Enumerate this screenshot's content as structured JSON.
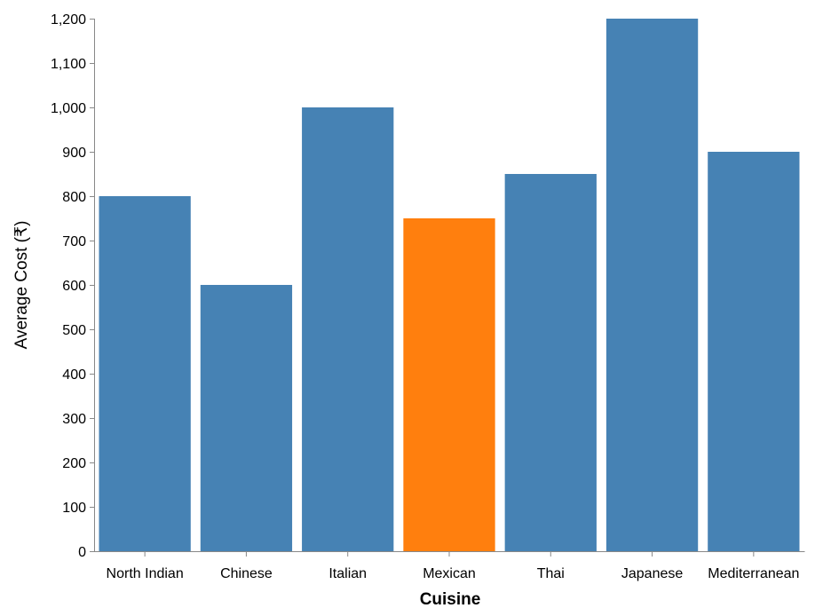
{
  "chart_data": {
    "type": "bar",
    "categories": [
      "North Indian",
      "Chinese",
      "Italian",
      "Mexican",
      "Thai",
      "Japanese",
      "Mediterranean"
    ],
    "values": [
      800,
      600,
      1000,
      750,
      850,
      1200,
      900
    ],
    "highlight_index": 3,
    "xlabel": "Cuisine",
    "ylabel": "Average Cost (₹)",
    "ylim": [
      0,
      1200
    ],
    "yticks": [
      0,
      100,
      200,
      300,
      400,
      500,
      600,
      700,
      800,
      900,
      1000,
      1100,
      1200
    ],
    "ytick_labels": [
      "0",
      "100",
      "200",
      "300",
      "400",
      "500",
      "600",
      "700",
      "800",
      "900",
      "1,000",
      "1,100",
      "1,200"
    ],
    "grid": false,
    "legend": "none",
    "colors": {
      "bar": "#4682b4",
      "highlight": "#ff7f0e",
      "axis": "#888888"
    }
  }
}
